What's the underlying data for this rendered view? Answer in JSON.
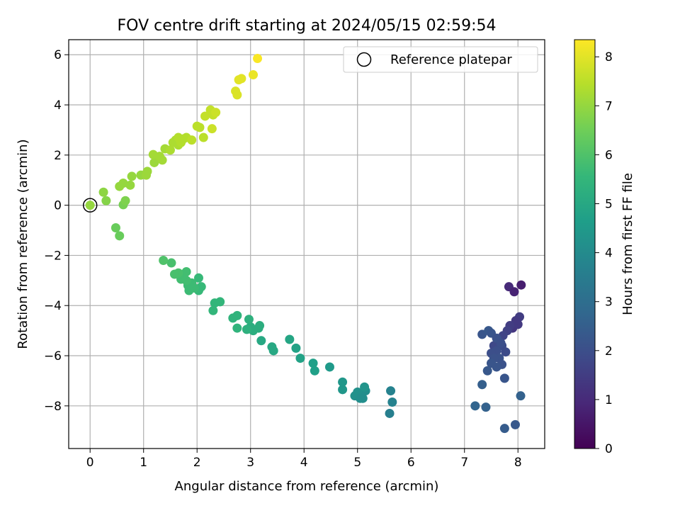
{
  "chart_data": {
    "type": "scatter",
    "title": "FOV centre drift starting at 2024/05/15 02:59:54",
    "xlabel": "Angular distance from reference (arcmin)",
    "ylabel": "Rotation from reference (arcmin)",
    "colorbar_label": "Hours from first FF file",
    "colormap": "viridis",
    "xlim": [
      -0.4,
      8.5
    ],
    "ylim": [
      -9.7,
      6.6
    ],
    "clim": [
      0,
      8.35
    ],
    "xticks": [
      0,
      1,
      2,
      3,
      4,
      5,
      6,
      7,
      8
    ],
    "yticks": [
      -8,
      -6,
      -4,
      -2,
      0,
      2,
      4,
      6
    ],
    "cticks": [
      0,
      1,
      2,
      3,
      4,
      5,
      6,
      7,
      8
    ],
    "grid": true,
    "legend": {
      "placement": "top-right",
      "entries": [
        {
          "label": "Reference platepar",
          "marker": "open-circle",
          "x": 0.0,
          "y": 0.0
        }
      ]
    },
    "points": [
      [
        7.83,
        -3.25,
        1.0
      ],
      [
        7.93,
        -3.45,
        0.8
      ],
      [
        8.06,
        -3.18,
        0.7
      ],
      [
        7.9,
        -4.9,
        1.3
      ],
      [
        8.0,
        -4.75,
        1.4
      ],
      [
        8.03,
        -4.45,
        1.5
      ],
      [
        7.96,
        -4.6,
        1.4
      ],
      [
        7.85,
        -4.8,
        1.5
      ],
      [
        7.8,
        -5.0,
        1.6
      ],
      [
        7.72,
        -5.2,
        1.7
      ],
      [
        7.63,
        -5.4,
        1.8
      ],
      [
        7.55,
        -5.6,
        1.8
      ],
      [
        7.7,
        -5.6,
        1.9
      ],
      [
        7.77,
        -5.85,
        1.9
      ],
      [
        7.6,
        -5.8,
        2.0
      ],
      [
        7.5,
        -5.9,
        2.0
      ],
      [
        7.65,
        -6.1,
        2.1
      ],
      [
        7.55,
        -6.1,
        2.1
      ],
      [
        7.7,
        -6.35,
        2.1
      ],
      [
        7.6,
        -6.45,
        2.2
      ],
      [
        7.5,
        -6.3,
        2.2
      ],
      [
        7.43,
        -6.6,
        2.3
      ],
      [
        7.75,
        -6.9,
        2.2
      ],
      [
        7.33,
        -5.15,
        2.2
      ],
      [
        7.45,
        -5.0,
        2.3
      ],
      [
        7.5,
        -5.1,
        2.2
      ],
      [
        7.6,
        -5.3,
        2.1
      ],
      [
        7.68,
        -5.5,
        2.0
      ],
      [
        7.33,
        -7.15,
        2.5
      ],
      [
        7.2,
        -8.0,
        2.7
      ],
      [
        7.4,
        -8.05,
        2.6
      ],
      [
        7.75,
        -8.9,
        2.4
      ],
      [
        7.95,
        -8.75,
        2.3
      ],
      [
        8.05,
        -7.6,
        2.6
      ],
      [
        5.6,
        -8.3,
        3.6
      ],
      [
        5.62,
        -7.4,
        3.7
      ],
      [
        5.65,
        -7.85,
        3.7
      ],
      [
        5.05,
        -7.55,
        4.0
      ],
      [
        5.1,
        -7.7,
        4.1
      ],
      [
        5.15,
        -7.4,
        4.1
      ],
      [
        5.0,
        -7.45,
        4.2
      ],
      [
        4.95,
        -7.6,
        4.2
      ],
      [
        5.13,
        -7.25,
        4.3
      ],
      [
        5.05,
        -7.7,
        4.1
      ],
      [
        4.72,
        -7.35,
        4.4
      ],
      [
        4.72,
        -7.05,
        4.4
      ],
      [
        4.48,
        -6.45,
        4.5
      ],
      [
        4.17,
        -6.3,
        4.7
      ],
      [
        4.2,
        -6.6,
        4.7
      ],
      [
        3.93,
        -6.1,
        4.8
      ],
      [
        3.85,
        -5.7,
        4.8
      ],
      [
        3.73,
        -5.35,
        4.9
      ],
      [
        3.43,
        -5.8,
        5.0
      ],
      [
        3.4,
        -5.65,
        5.0
      ],
      [
        3.2,
        -5.4,
        5.0
      ],
      [
        3.15,
        -4.9,
        5.2
      ],
      [
        3.17,
        -4.8,
        5.2
      ],
      [
        3.05,
        -5.0,
        5.2
      ],
      [
        3.0,
        -4.85,
        5.2
      ],
      [
        2.97,
        -4.55,
        5.3
      ],
      [
        2.93,
        -4.95,
        5.3
      ],
      [
        2.75,
        -4.9,
        5.4
      ],
      [
        2.75,
        -4.4,
        5.4
      ],
      [
        2.67,
        -4.5,
        5.4
      ],
      [
        2.43,
        -3.85,
        5.5
      ],
      [
        2.33,
        -3.9,
        5.5
      ],
      [
        2.3,
        -4.2,
        5.5
      ],
      [
        2.08,
        -3.25,
        5.6
      ],
      [
        2.03,
        -3.4,
        5.6
      ],
      [
        2.03,
        -2.9,
        5.6
      ],
      [
        1.95,
        -3.3,
        5.7
      ],
      [
        1.9,
        -3.1,
        5.7
      ],
      [
        1.85,
        -3.4,
        5.7
      ],
      [
        1.83,
        -3.2,
        5.7
      ],
      [
        1.8,
        -3.0,
        5.8
      ],
      [
        1.75,
        -2.8,
        5.8
      ],
      [
        1.7,
        -2.95,
        5.8
      ],
      [
        1.8,
        -2.65,
        5.8
      ],
      [
        1.67,
        -2.75,
        5.8
      ],
      [
        1.65,
        -2.7,
        5.9
      ],
      [
        1.58,
        -2.75,
        5.9
      ],
      [
        1.52,
        -2.3,
        5.9
      ],
      [
        1.37,
        -2.2,
        6.0
      ],
      [
        0.55,
        -1.22,
        6.4
      ],
      [
        0.48,
        -0.9,
        6.4
      ],
      [
        0.62,
        0.02,
        6.6
      ],
      [
        0.66,
        0.18,
        6.7
      ],
      [
        0.3,
        0.18,
        6.8
      ],
      [
        0.25,
        0.52,
        6.9
      ],
      [
        0.55,
        0.75,
        7.0
      ],
      [
        0.62,
        0.88,
        7.0
      ],
      [
        0.75,
        0.8,
        7.0
      ],
      [
        0.78,
        1.15,
        7.0
      ],
      [
        0.95,
        1.2,
        7.0
      ],
      [
        1.05,
        1.2,
        7.1
      ],
      [
        1.07,
        1.35,
        7.1
      ],
      [
        1.2,
        1.7,
        7.1
      ],
      [
        1.18,
        2.02,
        7.2
      ],
      [
        1.3,
        1.95,
        7.2
      ],
      [
        1.35,
        1.8,
        7.2
      ],
      [
        1.4,
        2.25,
        7.2
      ],
      [
        1.5,
        2.2,
        7.3
      ],
      [
        1.55,
        2.5,
        7.3
      ],
      [
        1.6,
        2.6,
        7.3
      ],
      [
        1.65,
        2.4,
        7.3
      ],
      [
        1.7,
        2.5,
        7.4
      ],
      [
        1.65,
        2.7,
        7.4
      ],
      [
        1.75,
        2.65,
        7.4
      ],
      [
        1.8,
        2.7,
        7.4
      ],
      [
        1.9,
        2.6,
        7.5
      ],
      [
        2.0,
        3.15,
        7.5
      ],
      [
        2.05,
        3.1,
        7.5
      ],
      [
        2.12,
        2.7,
        7.5
      ],
      [
        2.15,
        3.55,
        7.6
      ],
      [
        2.25,
        3.8,
        7.6
      ],
      [
        2.3,
        3.6,
        7.6
      ],
      [
        2.35,
        3.7,
        7.7
      ],
      [
        2.28,
        3.05,
        7.7
      ],
      [
        2.72,
        4.55,
        7.9
      ],
      [
        2.75,
        4.4,
        7.9
      ],
      [
        2.78,
        5.0,
        8.0
      ],
      [
        2.83,
        5.05,
        8.0
      ],
      [
        3.05,
        5.2,
        8.1
      ],
      [
        3.13,
        5.85,
        8.3
      ],
      [
        0.0,
        0.0,
        7.0
      ]
    ]
  }
}
